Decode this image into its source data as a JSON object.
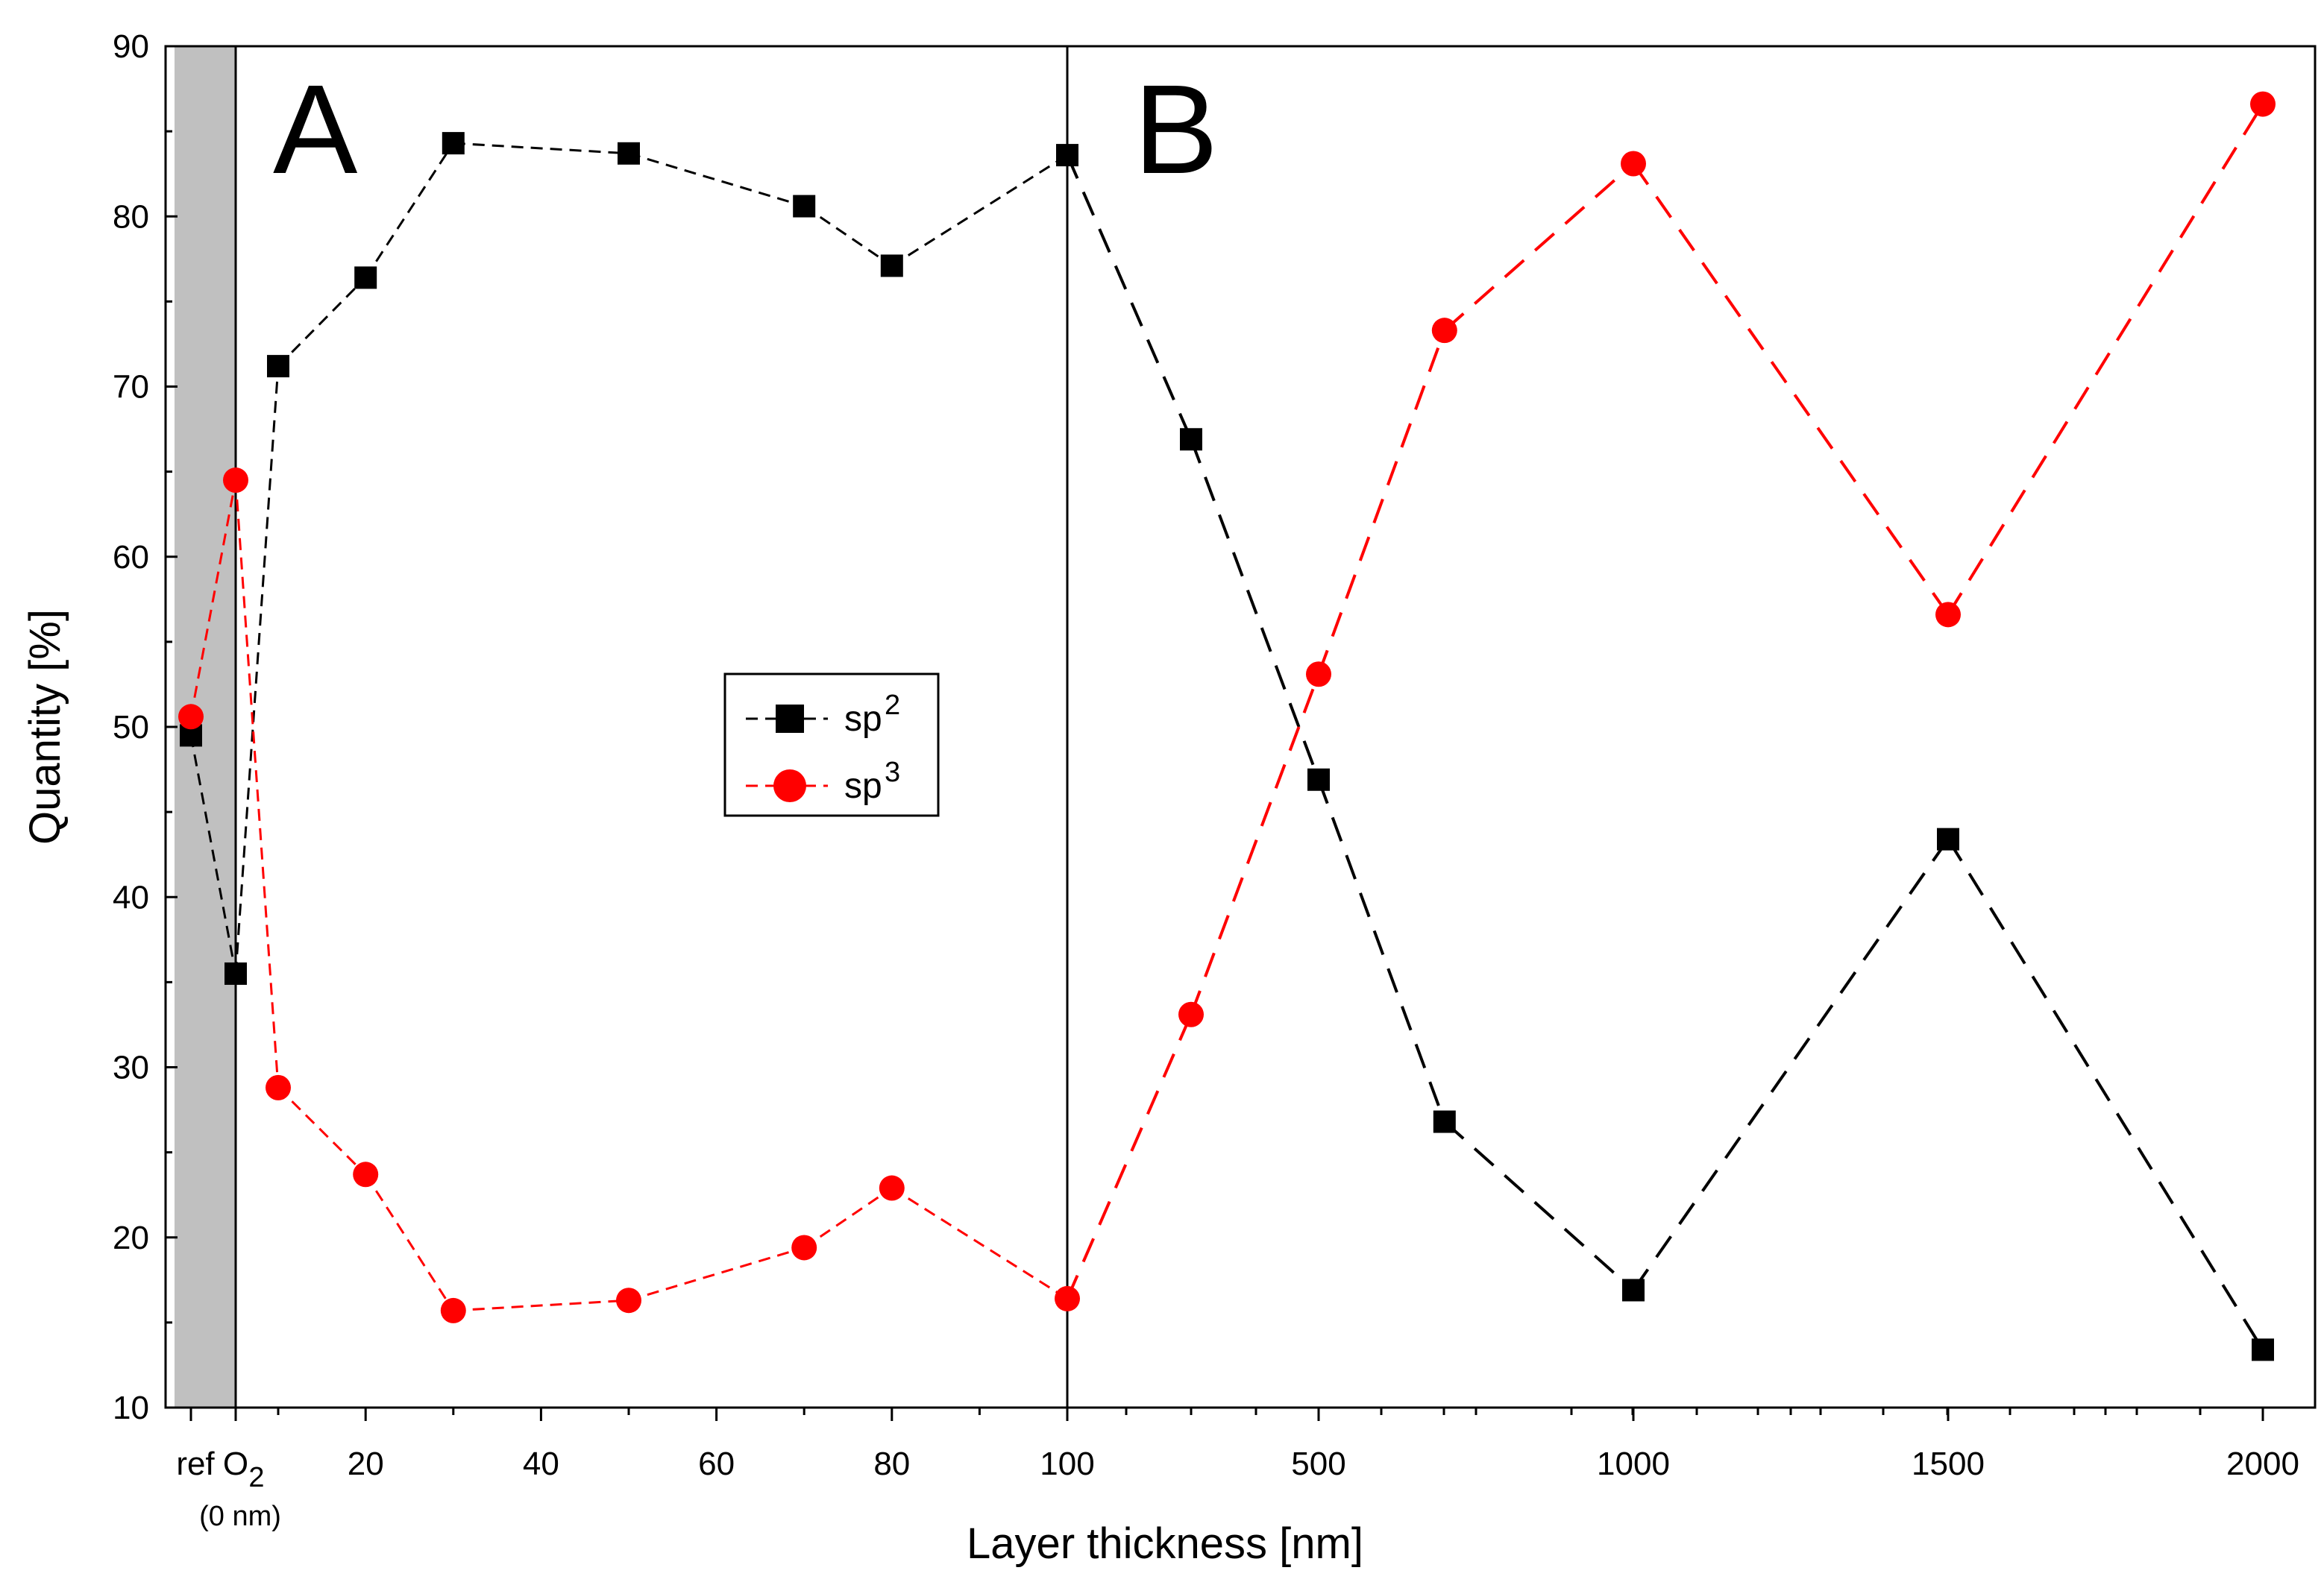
{
  "chart_data": {
    "type": "line",
    "xlabel": "Layer thickness [nm]",
    "ylabel": "Quantity [%]",
    "ylim": [
      10,
      90
    ],
    "yticks": [
      10,
      20,
      30,
      40,
      50,
      60,
      70,
      80,
      90
    ],
    "xtick_labels": [
      {
        "pos": 0,
        "label": "ref"
      },
      {
        "pos": 1,
        "label": "O",
        "sub": "2",
        "note": "(0 nm)"
      },
      {
        "pos": 20,
        "label": "20"
      },
      {
        "pos": 40,
        "label": "40"
      },
      {
        "pos": 60,
        "label": "60"
      },
      {
        "pos": 80,
        "label": "80"
      },
      {
        "pos": 100,
        "label": "100"
      },
      {
        "pos": 500,
        "label": "500"
      },
      {
        "pos": 1000,
        "label": "1000"
      },
      {
        "pos": 1500,
        "label": "1500"
      },
      {
        "pos": 2000,
        "label": "2000"
      }
    ],
    "panels": [
      {
        "label": "A",
        "x": 20
      },
      {
        "label": "B",
        "x": 113
      }
    ],
    "shaded_region": {
      "from": "ref",
      "to": "O2",
      "color": "#c0c0c0"
    },
    "divider_at": 100,
    "legend": {
      "location": "center",
      "entries": [
        "sp",
        "sp"
      ],
      "superscripts": [
        "2",
        "3"
      ]
    },
    "series": [
      {
        "name": "sp2",
        "color": "#000000",
        "marker": "square",
        "x": [
          "ref",
          "O2",
          10,
          20,
          30,
          50,
          70,
          80,
          100,
          250,
          500,
          700,
          1000,
          1500,
          2000
        ],
        "values": [
          49.5,
          35.5,
          71.2,
          76.4,
          84.3,
          83.7,
          80.6,
          77.1,
          83.6,
          66.9,
          46.9,
          26.8,
          16.9,
          43.4,
          13.4
        ]
      },
      {
        "name": "sp3",
        "color": "#ff0000",
        "marker": "circle",
        "x": [
          "ref",
          "O2",
          10,
          20,
          30,
          50,
          70,
          80,
          100,
          250,
          500,
          700,
          1000,
          1500,
          2000
        ],
        "values": [
          50.6,
          64.5,
          28.8,
          23.7,
          15.7,
          16.3,
          19.4,
          22.9,
          16.4,
          33.1,
          53.1,
          73.3,
          83.1,
          56.6,
          86.6
        ]
      }
    ]
  }
}
